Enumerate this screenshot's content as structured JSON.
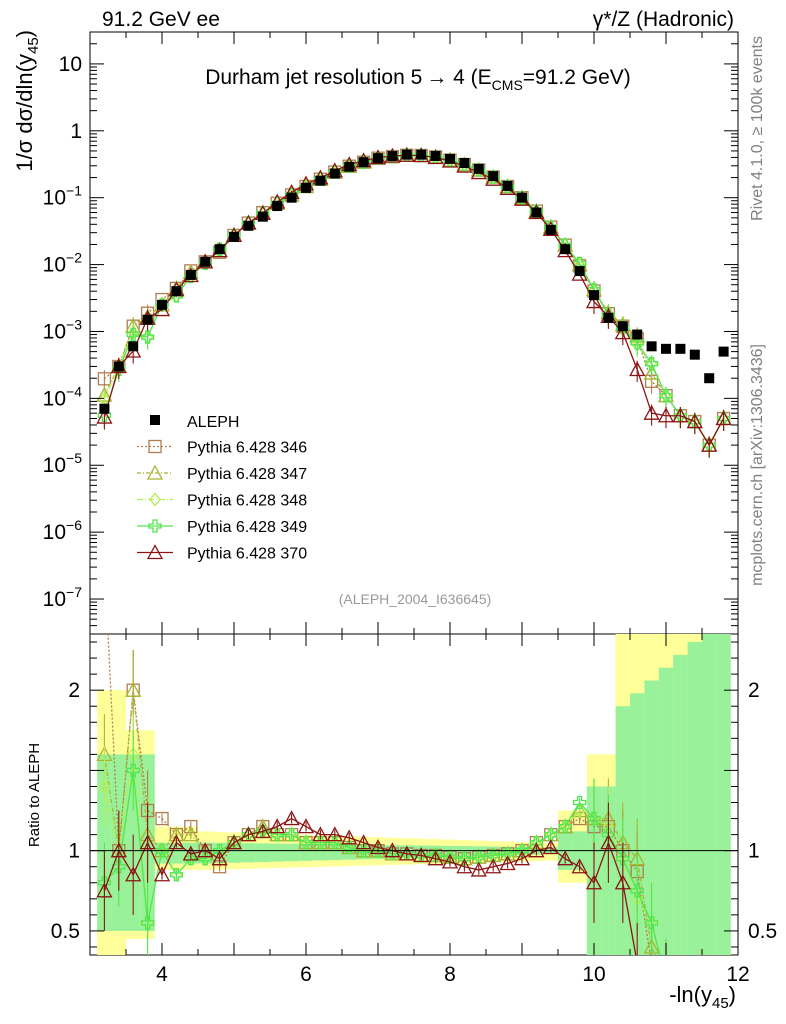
{
  "header": {
    "left": "91.2 GeV ee",
    "right": "γ*/Z (Hadronic)",
    "side_top": "Rivet 4.1.0, ≥ 100k events",
    "side_bottom": "mcplots.cern.ch [arXiv:1306.3436]"
  },
  "chart_data": {
    "type": "line",
    "title": "Durham jet resolution 5 → 4 (E_CMS=91.2 GeV)",
    "title_parts": [
      "Durham jet resolution 5",
      "→",
      " 4 (E",
      "CMS",
      "=91.2 GeV)"
    ],
    "ylabel": "1/σ dσ/dln(y_45)",
    "ylabel_parts": [
      "1/σ  dσ/dln(y",
      "45",
      ")"
    ],
    "xlabel": "-ln(y_45)",
    "xlabel_parts": [
      "-ln(y",
      "45",
      ")"
    ],
    "ratio_ylabel": "Ratio to ALEPH",
    "analysis_tag": "(ALEPH_2004_I636645)",
    "xlim": [
      3.0,
      12.0
    ],
    "ylim": [
      3e-08,
      30
    ],
    "ratio_ylim": [
      0.35,
      2.35
    ],
    "x_ticks": [
      "4",
      "6",
      "8",
      "10",
      "12"
    ],
    "x_tick_values": [
      4,
      6,
      8,
      10,
      12
    ],
    "y_ticks": [
      "10",
      "1",
      "10^-1",
      "10^-2",
      "10^-3",
      "10^-4",
      "10^-5",
      "10^-6",
      "10^-7"
    ],
    "y_tick_values": [
      10,
      1,
      0.1,
      0.01,
      0.001,
      0.0001,
      1e-05,
      1e-06,
      1e-07
    ],
    "y_tick_parts": [
      [
        "10",
        ""
      ],
      [
        "1",
        ""
      ],
      [
        "10",
        "−1"
      ],
      [
        "10",
        "−2"
      ],
      [
        "10",
        "−3"
      ],
      [
        "10",
        "−4"
      ],
      [
        "10",
        "−5"
      ],
      [
        "10",
        "−6"
      ],
      [
        "10",
        "−7"
      ]
    ],
    "ratio_ticks": [
      "0.5",
      "1",
      "2"
    ],
    "ratio_tick_values": [
      0.5,
      1,
      2
    ],
    "x": [
      3.2,
      3.4,
      3.6,
      3.8,
      4.0,
      4.2,
      4.4,
      4.6,
      4.8,
      5.0,
      5.2,
      5.4,
      5.6,
      5.8,
      6.0,
      6.2,
      6.4,
      6.6,
      6.8,
      7.0,
      7.2,
      7.4,
      7.6,
      7.8,
      8.0,
      8.2,
      8.4,
      8.6,
      8.8,
      9.0,
      9.2,
      9.4,
      9.6,
      9.8,
      10.0,
      10.2,
      10.4,
      10.6,
      10.8,
      11.0,
      11.2,
      11.4,
      11.6,
      11.8
    ],
    "aleph": [
      7e-05,
      0.0003,
      0.0006,
      0.0015,
      0.0025,
      0.004,
      0.007,
      0.011,
      0.017,
      0.026,
      0.038,
      0.052,
      0.075,
      0.1,
      0.14,
      0.18,
      0.23,
      0.29,
      0.34,
      0.39,
      0.42,
      0.44,
      0.44,
      0.42,
      0.38,
      0.33,
      0.27,
      0.21,
      0.15,
      0.1,
      0.06,
      0.033,
      0.017,
      0.008,
      0.0035,
      0.0016,
      0.0012,
      0.0009,
      0.0006,
      0.00055,
      0.00055,
      0.00045,
      0.0002,
      0.0005
    ],
    "band_ratio": [
      [
        1.0,
        1.8,
        0.55
      ],
      [
        1.0,
        1.55,
        0.65
      ],
      [
        1.0,
        1.3,
        0.8
      ],
      [
        1.0,
        1.2,
        0.85
      ],
      [
        1.0,
        1.15,
        0.88
      ],
      [
        1.0,
        1.1,
        0.9
      ],
      [
        1.0,
        1.1,
        0.9
      ],
      [
        1.0,
        1.08,
        0.92
      ]
    ],
    "series": [
      {
        "name": "Pythia 6.428 346",
        "color": "#b07d50",
        "marker": "square",
        "dash": "2,2",
        "ratio": [
          2.8,
          1.0,
          2.0,
          1.25,
          1.2,
          1.1,
          1.15,
          1.0,
          0.9,
          1.05,
          1.1,
          1.15,
          1.1,
          1.1,
          1.05,
          1.05,
          1.05,
          1.02,
          1.0,
          1.0,
          0.98,
          0.98,
          0.97,
          0.97,
          0.96,
          0.95,
          0.96,
          0.97,
          0.98,
          1.0,
          1.05,
          1.1,
          1.15,
          1.2,
          1.15,
          1.15,
          1.0,
          0.87,
          0.3,
          0.2,
          0.1,
          0.1,
          0.1,
          0.1
        ]
      },
      {
        "name": "Pythia 6.428 347",
        "color": "#a8b432",
        "marker": "triangle",
        "dash": "4,2,1,2",
        "ratio": [
          1.6,
          1.0,
          2.0,
          1.1,
          1.0,
          1.1,
          1.1,
          1.0,
          0.95,
          1.05,
          1.1,
          1.15,
          1.1,
          1.1,
          1.05,
          1.05,
          1.05,
          1.02,
          1.0,
          1.0,
          0.98,
          0.98,
          0.97,
          0.97,
          0.96,
          0.95,
          0.96,
          0.97,
          0.98,
          1.0,
          1.05,
          1.1,
          1.15,
          1.25,
          1.2,
          1.2,
          1.05,
          0.95,
          0.4,
          0.2,
          0.1,
          0.1,
          0.1,
          0.1
        ]
      },
      {
        "name": "Pythia 6.428 348",
        "color": "#b4f050",
        "marker": "diamond",
        "dash": "6,2,1,2",
        "ratio": [
          1.4,
          1.0,
          1.6,
          0.55,
          1.0,
          0.85,
          0.95,
          0.95,
          1.0,
          1.05,
          1.1,
          1.12,
          1.1,
          1.1,
          1.05,
          1.05,
          1.05,
          1.02,
          1.0,
          1.0,
          0.98,
          0.98,
          0.97,
          0.97,
          0.96,
          0.95,
          0.96,
          0.97,
          0.98,
          1.0,
          1.05,
          1.1,
          1.15,
          1.25,
          1.2,
          1.15,
          0.95,
          0.7,
          0.55,
          0.2,
          0.1,
          0.1,
          0.1,
          0.1
        ]
      },
      {
        "name": "Pythia 6.428 349",
        "color": "#50e650",
        "marker": "cross",
        "dash": "",
        "ratio": [
          0.8,
          0.9,
          1.5,
          0.55,
          1.0,
          0.85,
          0.95,
          0.95,
          1.0,
          1.05,
          1.1,
          1.12,
          1.1,
          1.1,
          1.05,
          1.05,
          1.05,
          1.02,
          1.0,
          1.0,
          0.98,
          0.98,
          0.97,
          0.97,
          0.96,
          0.95,
          0.96,
          0.97,
          0.98,
          1.0,
          1.05,
          1.1,
          1.15,
          1.3,
          1.2,
          1.1,
          0.95,
          0.75,
          0.55,
          0.2,
          0.1,
          0.1,
          0.1,
          0.1
        ]
      },
      {
        "name": "Pythia 6.428 370",
        "color": "#8c1414",
        "marker": "triangle",
        "dash": "",
        "ratio": [
          0.75,
          1.0,
          0.85,
          1.05,
          0.85,
          1.05,
          0.98,
          1.0,
          0.95,
          1.05,
          1.1,
          1.12,
          1.15,
          1.2,
          1.15,
          1.1,
          1.1,
          1.08,
          1.05,
          1.02,
          1.0,
          0.98,
          0.97,
          0.95,
          0.93,
          0.9,
          0.88,
          0.9,
          0.92,
          0.95,
          1.0,
          1.02,
          0.95,
          0.9,
          0.8,
          1.05,
          0.8,
          0.3,
          0.1,
          0.1,
          0.1,
          0.1,
          0.1,
          0.1
        ]
      }
    ],
    "legend": {
      "data_label": "ALEPH",
      "placement": "middle-left"
    }
  }
}
